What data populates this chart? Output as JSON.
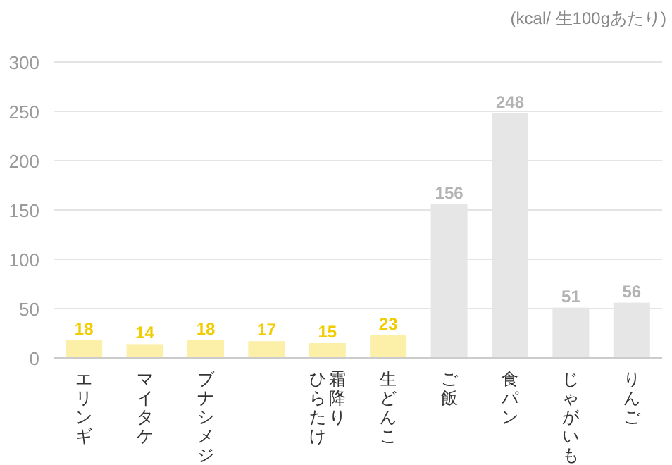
{
  "chart_data": {
    "type": "bar",
    "categories": [
      "エリンギ",
      "マイタケ",
      "ブナシメジ",
      null,
      "霜降りひらたけ",
      "生どんこ",
      "ご飯",
      "食パン",
      "じゃがいも",
      "りんご"
    ],
    "values": [
      18,
      14,
      18,
      17,
      15,
      23,
      156,
      248,
      51,
      56
    ],
    "colors": [
      "#fcefa8",
      "#fcefa8",
      "#fcefa8",
      "#fcefa8",
      "#fcefa8",
      "#fcefa8",
      "#e6e6e6",
      "#e6e6e6",
      "#e6e6e6",
      "#e6e6e6"
    ],
    "ylim": [
      0,
      300
    ],
    "yticks": [
      0,
      50,
      100,
      150,
      200,
      250,
      300
    ],
    "grid": "y",
    "data_labels": true,
    "annotations": [
      "(kcal/ 生100gあたり)"
    ]
  }
}
